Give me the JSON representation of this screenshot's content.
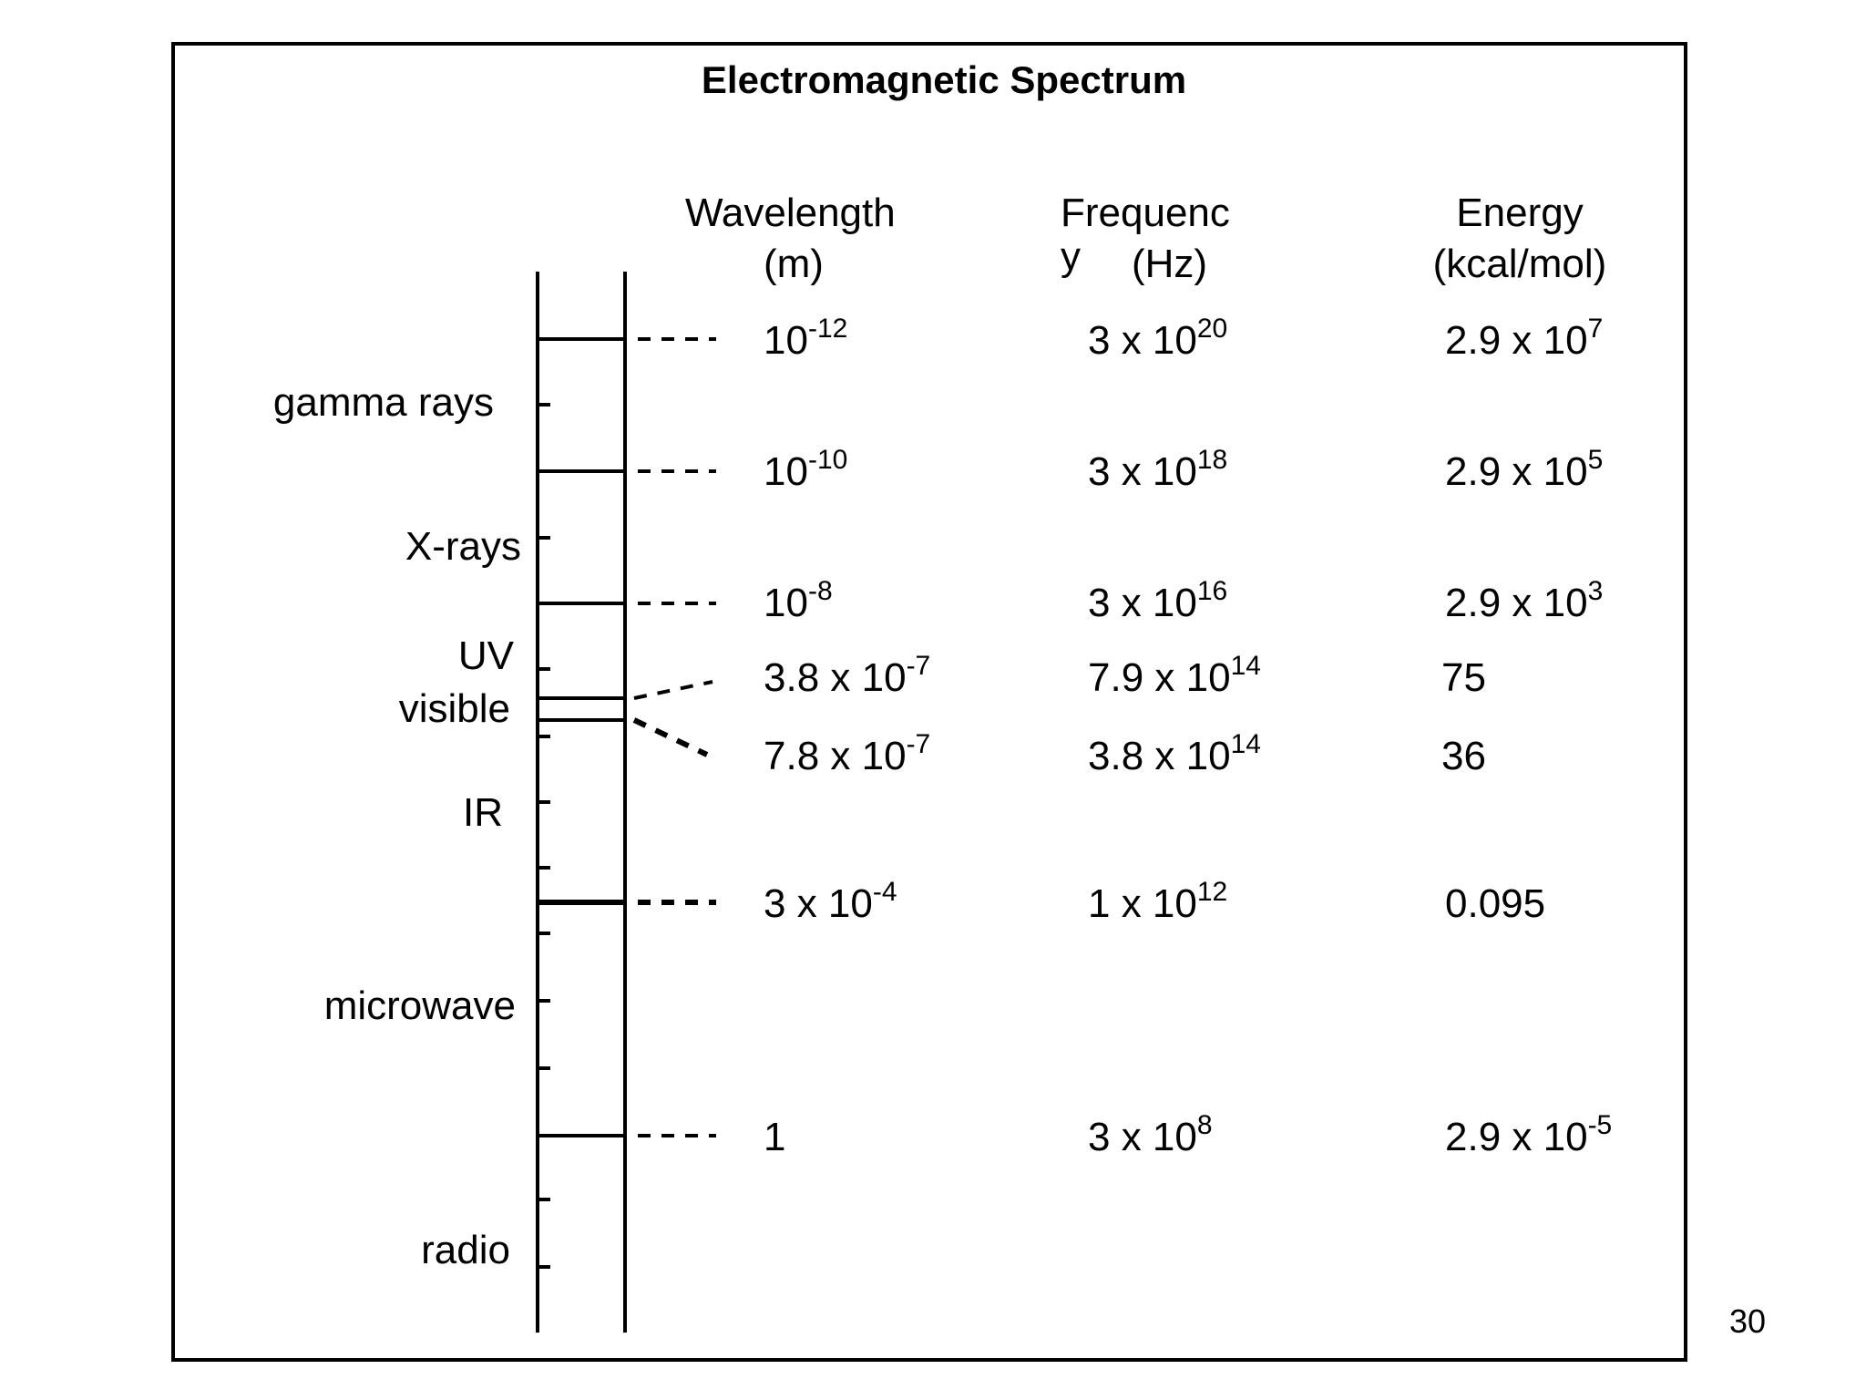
{
  "title": "Electromagnetic Spectrum",
  "page_number": "30",
  "headers": {
    "wavelength": [
      "Wavelength",
      "(m)"
    ],
    "frequency": [
      "Frequenc",
      "y",
      "(Hz)"
    ],
    "energy": [
      "Energy",
      "(kcal/mol)"
    ]
  },
  "regions": [
    "gamma rays",
    "X-rays",
    "UV",
    "visible",
    "IR",
    "microwave",
    "radio"
  ],
  "rows": [
    {
      "wavelength": {
        "base": "10",
        "exp": "-12"
      },
      "frequency": {
        "base": "3 x 10",
        "exp": "20"
      },
      "energy": {
        "base": "2.9 x 10",
        "exp": "7"
      }
    },
    {
      "wavelength": {
        "base": "10",
        "exp": "-10"
      },
      "frequency": {
        "base": "3 x 10",
        "exp": "18"
      },
      "energy": {
        "base": "2.9 x 10",
        "exp": "5"
      }
    },
    {
      "wavelength": {
        "base": "10",
        "exp": "-8"
      },
      "frequency": {
        "base": "3 x 10",
        "exp": "16"
      },
      "energy": {
        "base": "2.9 x 10",
        "exp": "3"
      }
    },
    {
      "wavelength": {
        "base": "3.8 x 10",
        "exp": "-7"
      },
      "frequency": {
        "base": "7.9 x 10",
        "exp": "14"
      },
      "energy": {
        "base": "75",
        "exp": ""
      }
    },
    {
      "wavelength": {
        "base": "7.8 x 10",
        "exp": "-7"
      },
      "frequency": {
        "base": "3.8 x 10",
        "exp": "14"
      },
      "energy": {
        "base": "36",
        "exp": ""
      }
    },
    {
      "wavelength": {
        "base": "3 x 10",
        "exp": "-4"
      },
      "frequency": {
        "base": "1 x 10",
        "exp": "12"
      },
      "energy": {
        "base": "0.095",
        "exp": ""
      }
    },
    {
      "wavelength": {
        "base": "1",
        "exp": ""
      },
      "frequency": {
        "base": "3 x 10",
        "exp": "8"
      },
      "energy": {
        "base": "2.9 x 10",
        "exp": "-5"
      }
    }
  ]
}
